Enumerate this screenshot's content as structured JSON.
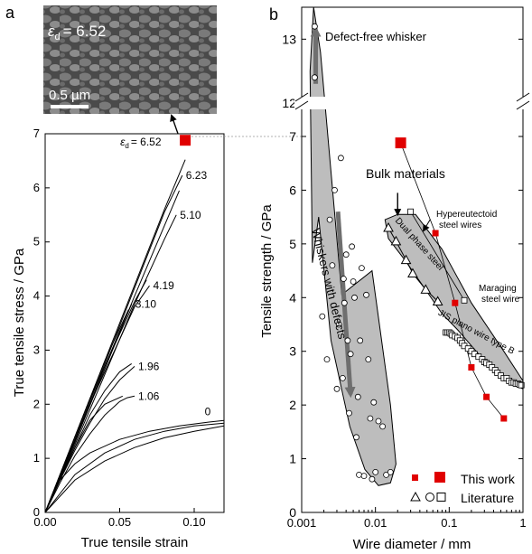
{
  "chart_data": [
    {
      "panel_label": "a",
      "type": "line",
      "xlabel": "True tensile strain",
      "ylabel": "True tensile stress / GPa",
      "xlim": [
        0,
        0.12
      ],
      "ylim": [
        0,
        7
      ],
      "xticks": [
        "0.00",
        "0.05",
        "0.10"
      ],
      "yticks": [
        "0",
        "1",
        "2",
        "3",
        "4",
        "5",
        "6",
        "7"
      ],
      "micrograph": {
        "strain_label_symbol": "ε",
        "strain_label_subscript": "d",
        "strain_label_value": "= 6.52",
        "scale_bar": "0.5 µm"
      },
      "series": [
        {
          "name": "0",
          "label": "0",
          "x": [
            0,
            0.005,
            0.01,
            0.02,
            0.03,
            0.05,
            0.07,
            0.09,
            0.11,
            0.12
          ],
          "y": [
            0,
            0.35,
            0.6,
            0.9,
            1.1,
            1.35,
            1.5,
            1.6,
            1.67,
            1.7
          ]
        },
        {
          "name": "1.06",
          "label": "1.06",
          "x": [
            0,
            0.01,
            0.02,
            0.03,
            0.04,
            0.05,
            0.055,
            0.06
          ],
          "y": [
            0,
            0.55,
            1.05,
            1.45,
            1.8,
            2.05,
            2.12,
            2.15
          ]
        },
        {
          "name": "1.96",
          "label": "1.96",
          "x": [
            0,
            0.01,
            0.02,
            0.03,
            0.04,
            0.05,
            0.06
          ],
          "y": [
            0,
            0.6,
            1.15,
            1.65,
            2.1,
            2.45,
            2.7
          ]
        },
        {
          "name": "3.10",
          "label": "3.10",
          "x": [
            0,
            0.01,
            0.02,
            0.03,
            0.04,
            0.05,
            0.058
          ],
          "y": [
            0,
            0.65,
            1.3,
            2.0,
            2.7,
            3.35,
            3.85
          ]
        },
        {
          "name": "4.19",
          "label": "4.19",
          "x": [
            0,
            0.015,
            0.03,
            0.045,
            0.06,
            0.07
          ],
          "y": [
            0,
            1.0,
            2.0,
            2.9,
            3.8,
            4.19
          ]
        },
        {
          "name": "5.10",
          "label": "5.10",
          "x": [
            0,
            0.02,
            0.04,
            0.06,
            0.08,
            0.088
          ],
          "y": [
            0,
            1.25,
            2.55,
            3.85,
            5.05,
            5.5
          ]
        },
        {
          "name": "6.23",
          "label": "6.23",
          "x": [
            0,
            0.02,
            0.04,
            0.06,
            0.08,
            0.092
          ],
          "y": [
            0,
            1.35,
            2.75,
            4.15,
            5.55,
            6.23
          ]
        },
        {
          "name": "6.52",
          "label": "6.52",
          "x": [
            0,
            0.02,
            0.04,
            0.06,
            0.08,
            0.094
          ],
          "y": [
            0,
            1.4,
            2.8,
            4.2,
            5.6,
            6.52
          ]
        }
      ],
      "extra_curves": [
        {
          "x": [
            0,
            0.02,
            0.04,
            0.06,
            0.08,
            0.1,
            0.12
          ],
          "y": [
            0,
            0.7,
            1.1,
            1.35,
            1.5,
            1.6,
            1.65
          ]
        },
        {
          "x": [
            0,
            0.02,
            0.04,
            0.06,
            0.08,
            0.1,
            0.12
          ],
          "y": [
            0,
            0.6,
            0.95,
            1.2,
            1.38,
            1.5,
            1.6
          ]
        },
        {
          "x": [
            0,
            0.01,
            0.02,
            0.03,
            0.04,
            0.052
          ],
          "y": [
            0,
            0.62,
            1.2,
            1.7,
            2.0,
            2.15
          ]
        },
        {
          "x": [
            0,
            0.01,
            0.02,
            0.03,
            0.04,
            0.05,
            0.058
          ],
          "y": [
            0,
            0.62,
            1.2,
            1.8,
            2.25,
            2.6,
            2.75
          ]
        },
        {
          "x": [
            0,
            0.01,
            0.02,
            0.03,
            0.04,
            0.05,
            0.056
          ],
          "y": [
            0,
            0.7,
            1.4,
            2.1,
            2.8,
            3.4,
            3.75
          ]
        },
        {
          "x": [
            0,
            0.015,
            0.03,
            0.045,
            0.06,
            0.068
          ],
          "y": [
            0,
            1.05,
            2.1,
            3.0,
            3.9,
            4.3
          ]
        },
        {
          "x": [
            0,
            0.02,
            0.04,
            0.06,
            0.08,
            0.09
          ],
          "y": [
            0,
            1.3,
            2.65,
            4.0,
            5.3,
            5.95
          ]
        }
      ],
      "marker_point": {
        "x": 0.094,
        "y": 6.88
      }
    },
    {
      "panel_label": "b",
      "type": "scatter",
      "xlabel": "Wire diameter / mm",
      "ylabel": "Tensile strength / GPa",
      "x_scale": "log",
      "xlim": [
        0.001,
        1
      ],
      "ylim_lower": [
        0,
        7
      ],
      "ylim_upper": [
        12,
        13.5
      ],
      "xticks": [
        "0.001",
        "0.01",
        "0.1",
        "1"
      ],
      "yticks": [
        "0",
        "1",
        "2",
        "3",
        "4",
        "5",
        "6",
        "7",
        "12",
        "13"
      ],
      "annotations": {
        "defect_free": "Defect-free whisker",
        "bulk": "Bulk materials",
        "whiskers": "Whiskers with defects",
        "hyper_line1": "Hypereutectoid",
        "hyper_line2": "steel wires",
        "dual_phase": "Dual phase steel",
        "maraging_line1": "Maraging",
        "maraging_line2": "steel wire",
        "jis": "JIS piano wire type B"
      },
      "legend": {
        "placement": "bottom-right",
        "this_work": "This work",
        "literature": "Literature"
      },
      "series": [
        {
          "name": "This work",
          "marker": "filled-square",
          "color": "#e00000",
          "x": [
            0.022,
            0.065,
            0.12,
            0.2,
            0.32,
            0.55
          ],
          "y": [
            6.88,
            5.2,
            3.9,
            2.7,
            2.15,
            1.75
          ]
        },
        {
          "name": "Whiskers",
          "marker": "open-circle",
          "x": [
            0.0015,
            0.0015,
            0.0019,
            0.0022,
            0.0024,
            0.0026,
            0.0028,
            0.003,
            0.0032,
            0.0034,
            0.0036,
            0.0037,
            0.0038,
            0.004,
            0.0042,
            0.0044,
            0.0046,
            0.0048,
            0.005,
            0.0052,
            0.0055,
            0.0058,
            0.006,
            0.0062,
            0.0065,
            0.007,
            0.0075,
            0.008,
            0.0085,
            0.009,
            0.0095,
            0.01,
            0.011,
            0.0125,
            0.014,
            0.016
          ],
          "y": [
            13.2,
            12.4,
            3.65,
            2.85,
            5.45,
            4.6,
            6.0,
            2.3,
            3.5,
            6.6,
            2.5,
            4.35,
            3.9,
            4.8,
            3.2,
            1.85,
            2.95,
            4.95,
            4.3,
            4.0,
            1.4,
            2.15,
            0.7,
            3.2,
            4.55,
            0.68,
            4.05,
            2.85,
            1.75,
            0.62,
            2.05,
            0.75,
            1.7,
            1.6,
            0.7,
            0.75
          ]
        },
        {
          "name": "Dual phase steel",
          "marker": "open-triangle",
          "x": [
            0.015,
            0.019,
            0.026,
            0.032,
            0.048,
            0.07
          ],
          "y": [
            5.3,
            5.05,
            4.7,
            4.45,
            4.15,
            3.93
          ]
        },
        {
          "name": "Literature wires",
          "marker": "open-square",
          "x": [
            0.09,
            0.095,
            0.1,
            0.105,
            0.11,
            0.12,
            0.13,
            0.14,
            0.15,
            0.16,
            0.18,
            0.2,
            0.22,
            0.25,
            0.28,
            0.3,
            0.32,
            0.35,
            0.38,
            0.42,
            0.45,
            0.5,
            0.55,
            0.6,
            0.65,
            0.7,
            0.75,
            0.8,
            0.85,
            0.9,
            0.95
          ],
          "y": [
            3.35,
            3.35,
            3.35,
            3.33,
            3.3,
            3.28,
            3.25,
            3.2,
            3.15,
            3.1,
            3.05,
            3.0,
            2.95,
            2.9,
            2.85,
            2.8,
            2.78,
            2.75,
            2.7,
            2.65,
            2.6,
            2.55,
            2.5,
            2.5,
            2.45,
            2.42,
            2.42,
            2.4,
            2.4,
            2.38,
            2.37
          ]
        },
        {
          "name": "Hypereutectoid steel wires",
          "marker": "open-square",
          "x": [
            0.03,
            0.16
          ],
          "y": [
            5.6,
            3.95
          ]
        }
      ]
    }
  ]
}
